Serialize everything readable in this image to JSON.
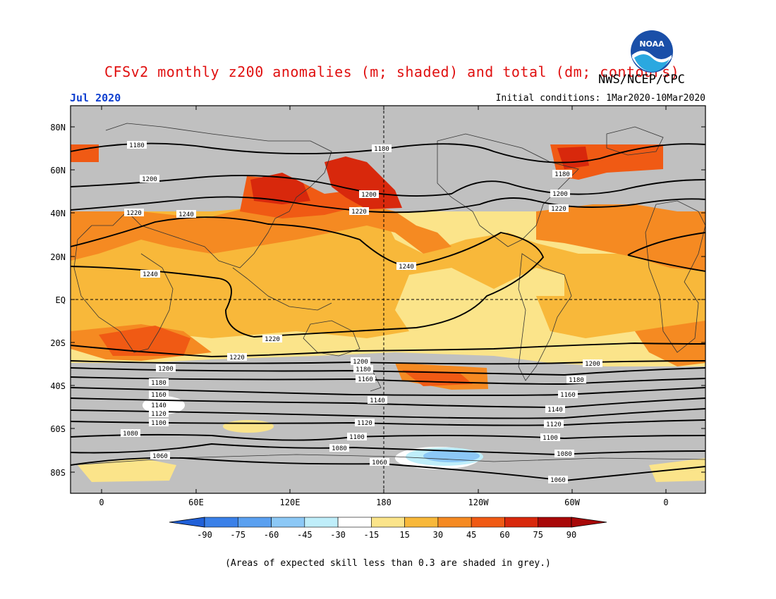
{
  "header": {
    "title": "CFSv2 monthly z200 anomalies (m; shaded) and total (dm; contours)",
    "agency": "NWS/NCEP/CPC",
    "month": "Jul 2020",
    "initial_conditions": "Initial conditions: 1Mar2020-10Mar2020",
    "logo_text": "NOAA"
  },
  "axes": {
    "lat_labels": [
      "80N",
      "60N",
      "40N",
      "20N",
      "EQ",
      "20S",
      "40S",
      "60S",
      "80S"
    ],
    "lon_labels": [
      "0",
      "60E",
      "120E",
      "180",
      "120W",
      "60W",
      "0"
    ]
  },
  "colorbar": {
    "tick_labels": [
      "-90",
      "-75",
      "-60",
      "-45",
      "-30",
      "-15",
      "15",
      "30",
      "45",
      "60",
      "75",
      "90"
    ],
    "colors": [
      "#2060d8",
      "#3a80e8",
      "#5aa0f0",
      "#8cc8f6",
      "#bfeefa",
      "#ffffff",
      "#fbe48a",
      "#f8b83a",
      "#f58a22",
      "#f05a14",
      "#d8280c",
      "#a80808"
    ]
  },
  "contour_labels": [
    "1180",
    "1180",
    "1200",
    "1220",
    "1240",
    "1200",
    "1220",
    "1180",
    "1200",
    "1220",
    "1240",
    "1240",
    "1220",
    "1220",
    "1200",
    "1180",
    "1160",
    "1140",
    "1120",
    "1100",
    "1200",
    "1180",
    "1160",
    "1140",
    "1120",
    "1100",
    "1080",
    "1060",
    "1200",
    "1180",
    "1160",
    "1140",
    "1120",
    "1100",
    "1080",
    "1060",
    "1080",
    "1060"
  ],
  "footnote": "(Areas of expected skill less than 0.3 are shaded in grey.)"
}
